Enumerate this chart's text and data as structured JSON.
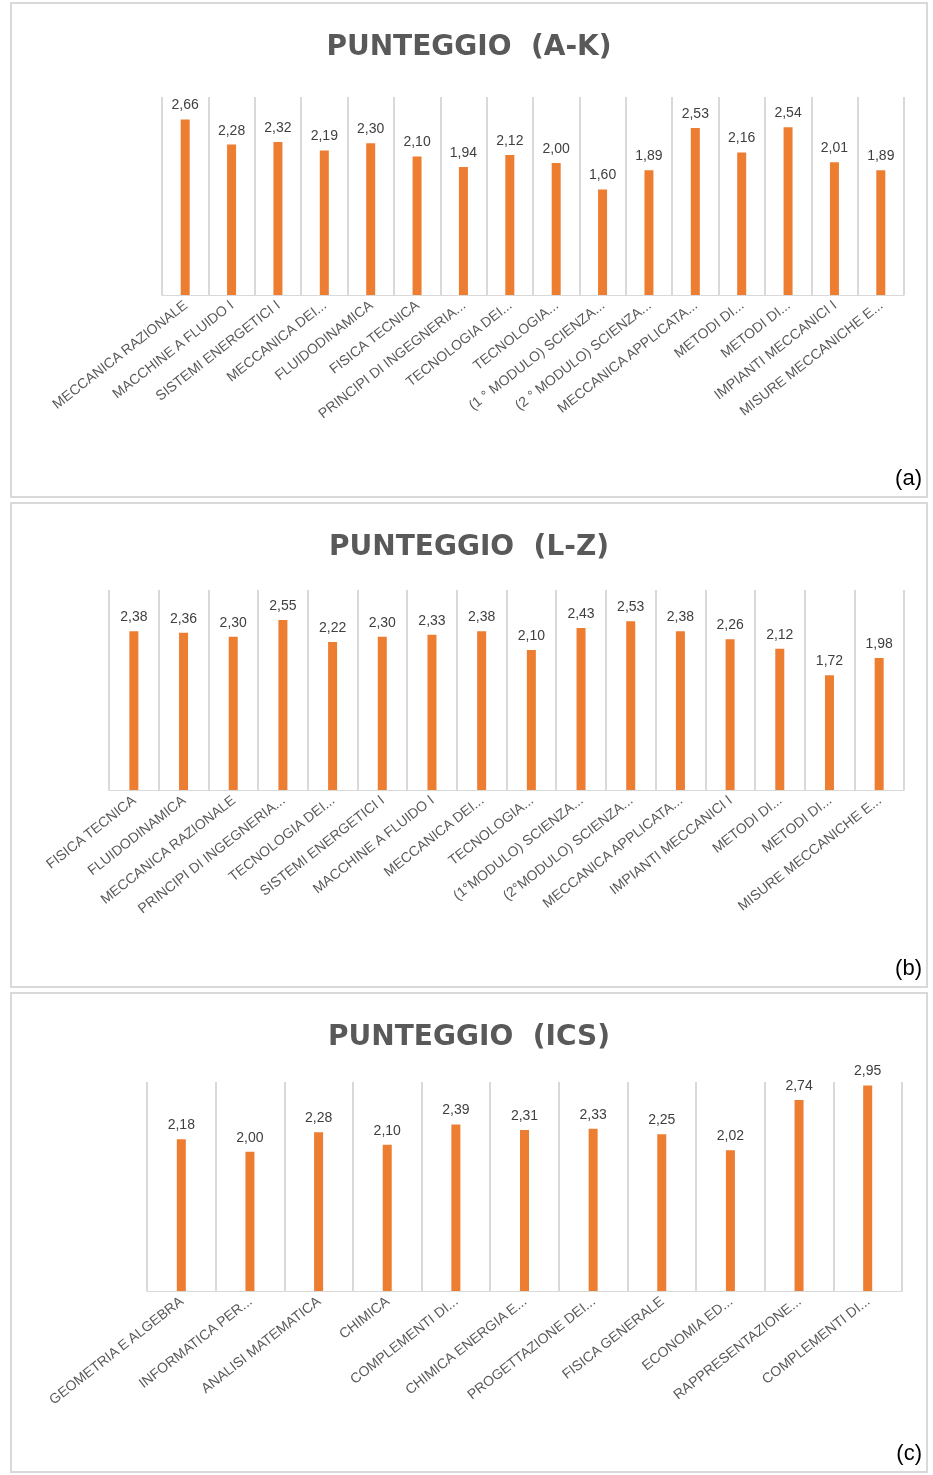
{
  "chart_data": [
    {
      "type": "bar",
      "title": "PUNTEGGIO  (A-K)",
      "categories": [
        "MECCANICA RAZIONALE",
        "MACCHINE A FLUIDO I",
        "SISTEMI ENERGETICI I",
        "MECCANICA DEI...",
        "FLUIDODINAMICA",
        "FISICA TECNICA",
        "PRINCIPI DI INGEGNERIA...",
        "TECNOLOGIA DEI...",
        "TECNOLOGIA...",
        "(1 ° MODULO) SCIENZA...",
        "(2 ° MODULO) SCIENZA...",
        "MECCANICA APPLICATA...",
        "METODI DI...",
        "METODI DI...",
        "IMPIANTI MECCANICI I",
        "MISURE MECCANICHE E..."
      ],
      "series": [
        {
          "color": "#ed7d31",
          "values": [
            2.66,
            2.28,
            2.32,
            2.19,
            2.3,
            2.1,
            1.94,
            2.12,
            2.0,
            1.6,
            1.89,
            2.53,
            2.16,
            2.54,
            2.01,
            1.89
          ],
          "value_labels": [
            "2,66",
            "2,28",
            "2,32",
            "2,19",
            "2,30",
            "2,10",
            "1,94",
            "2,12",
            "2,00",
            "1,60",
            "1,89",
            "2,53",
            "2,16",
            "2,54",
            "2,01",
            "1,89"
          ]
        }
      ],
      "grid": "x",
      "annotations": [
        "(a)"
      ]
    },
    {
      "type": "bar",
      "title": "PUNTEGGIO  (L-Z)",
      "categories": [
        "FISICA TECNICA",
        "FLUIDODINAMICA",
        "MECCANICA RAZIONALE",
        "PRINCIPI DI INGEGNERIA...",
        "TECNOLOGIA DEI...",
        "SISTEMI ENERGETICI I",
        "MACCHINE A FLUIDO I",
        "MECCANICA DEI...",
        "TECNOLOGIA...",
        "(1°MODULO) SCIENZA...",
        "(2°MODULO) SCIENZA...",
        "MECCANICA APPLICATA...",
        "IMPIANTI MECCANICI I",
        "METODI DI...",
        "METODI DI...",
        "MISURE MECCANICHE E..."
      ],
      "series": [
        {
          "color": "#ed7d31",
          "values": [
            2.38,
            2.36,
            2.3,
            2.55,
            2.22,
            2.3,
            2.33,
            2.38,
            2.1,
            2.43,
            2.53,
            2.38,
            2.26,
            2.12,
            1.72,
            1.98
          ],
          "value_labels": [
            "2,38",
            "2,36",
            "2,30",
            "2,55",
            "2,22",
            "2,30",
            "2,33",
            "2,38",
            "2,10",
            "2,43",
            "2,53",
            "2,38",
            "2,26",
            "2,12",
            "1,72",
            "1,98"
          ]
        }
      ],
      "grid": "x",
      "annotations": [
        "(b)"
      ]
    },
    {
      "type": "bar",
      "title": "PUNTEGGIO  (ICS)",
      "categories": [
        "GEOMETRIA E ALGEBRA",
        "INFORMATICA PER...",
        "ANALISI MATEMATICA",
        "CHIMICA",
        "COMPLEMENTI DI...",
        "CHIMICA ENERGIA E...",
        "PROGETTAZIONE DEI...",
        "FISICA GENERALE",
        "ECONOMIA ED...",
        "RAPPRESENTAZIONE...",
        "COMPLEMENTI DI..."
      ],
      "series": [
        {
          "color": "#ed7d31",
          "values": [
            2.18,
            2.0,
            2.28,
            2.1,
            2.39,
            2.31,
            2.33,
            2.25,
            2.02,
            2.74,
            2.95
          ],
          "value_labels": [
            "2,18",
            "2,00",
            "2,28",
            "2,10",
            "2,39",
            "2,31",
            "2,33",
            "2,25",
            "2,02",
            "2,74",
            "2,95"
          ]
        }
      ],
      "grid": "x",
      "annotations": [
        "(c)"
      ]
    }
  ]
}
